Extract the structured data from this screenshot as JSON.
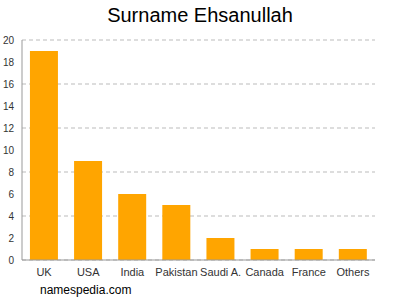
{
  "chart_data": {
    "type": "bar",
    "title": "Surname Ehsanullah",
    "categories": [
      "UK",
      "USA",
      "India",
      "Pakistan",
      "Saudi A.",
      "Canada",
      "France",
      "Others"
    ],
    "values": [
      19,
      9,
      6,
      5,
      2,
      1,
      1,
      1
    ],
    "color": "#ffa500",
    "ylim": [
      0,
      20
    ],
    "yticks": [
      0,
      2,
      4,
      6,
      8,
      10,
      12,
      14,
      16,
      18,
      20
    ],
    "grid": true,
    "annotations": [
      "namespedia.com"
    ]
  }
}
